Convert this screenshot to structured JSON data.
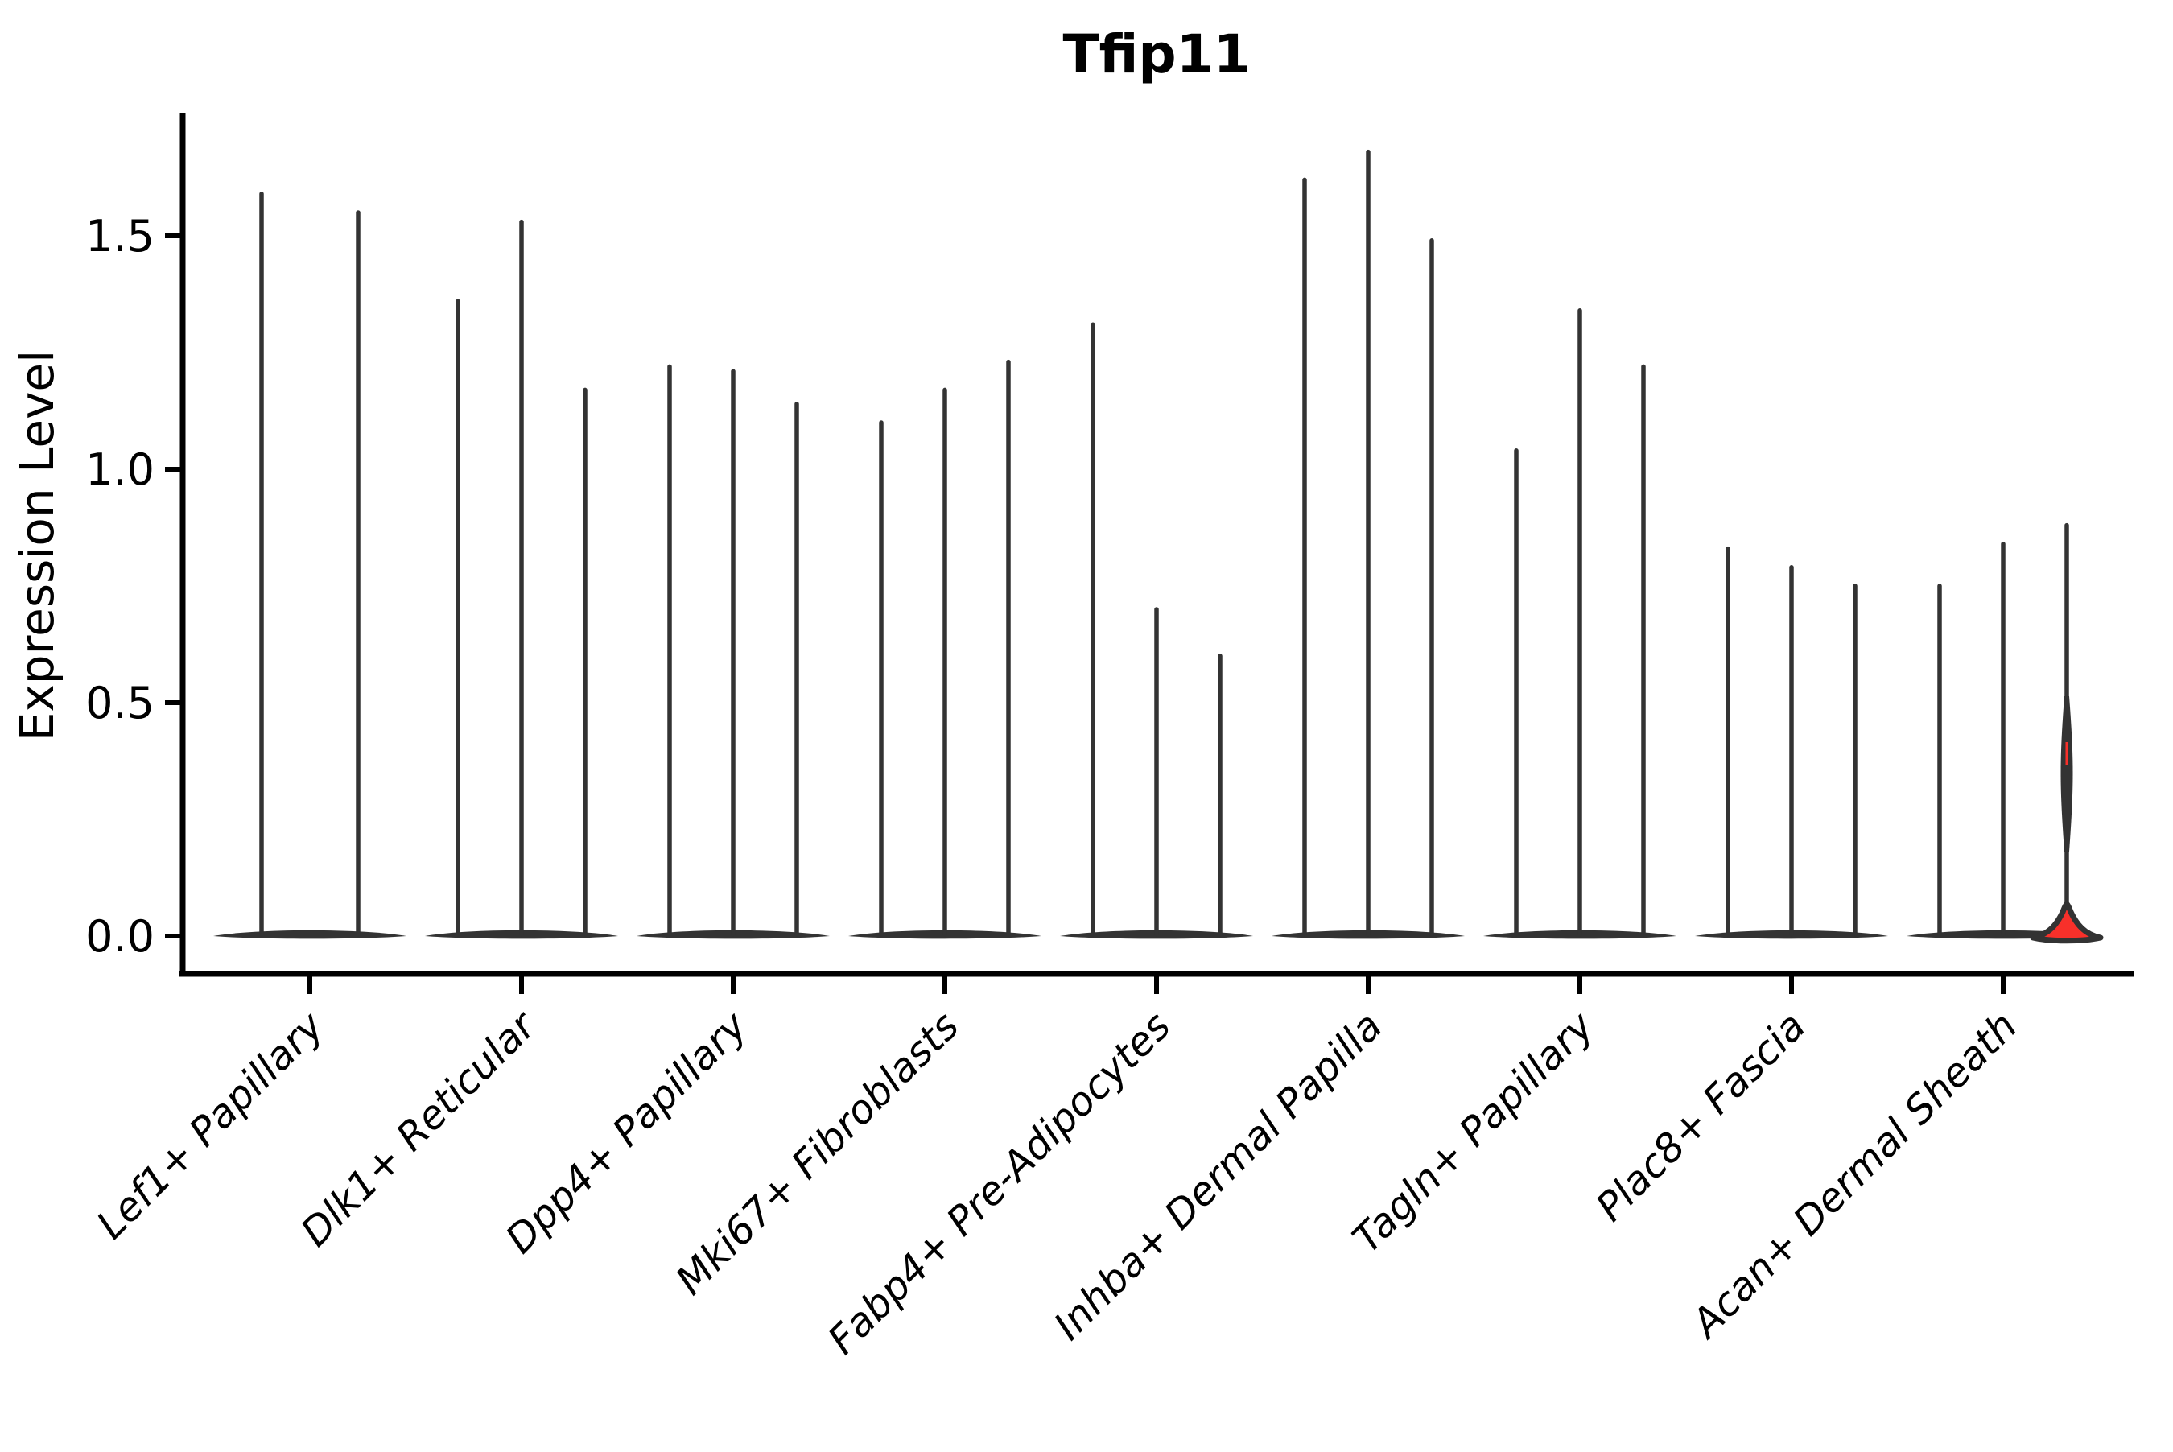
{
  "chart_data": {
    "type": "violin",
    "title": "Tfip11",
    "ylabel": "Expression Level",
    "xlabel": "",
    "ylim": [
      -0.08,
      1.76
    ],
    "yticks": [
      0.0,
      0.5,
      1.0,
      1.5
    ],
    "ytick_labels": [
      "0.0",
      "0.5",
      "1.0",
      "1.5"
    ],
    "grid": false,
    "legend": false,
    "categories": [
      "Lef1+ Papillary",
      "Dlk1+ Reticular",
      "Dpp4+ Papillary",
      "Mki67+ Fibroblasts",
      "Fabp4+ Pre-Adipocytes",
      "Inhba+ Dermal Papilla",
      "Tagln+ Papillary",
      "Plac8+ Fascia",
      "Acan+ Dermal Sheath"
    ],
    "groups": [
      {
        "category": "Lef1+ Papillary",
        "violin_max_expression": [
          1.59,
          1.55
        ],
        "highlight_index": null
      },
      {
        "category": "Dlk1+ Reticular",
        "violin_max_expression": [
          1.36,
          1.53,
          1.17
        ],
        "highlight_index": null
      },
      {
        "category": "Dpp4+ Papillary",
        "violin_max_expression": [
          1.22,
          1.21,
          1.14
        ],
        "highlight_index": null
      },
      {
        "category": "Mki67+ Fibroblasts",
        "violin_max_expression": [
          1.1,
          1.17,
          1.23
        ],
        "highlight_index": null
      },
      {
        "category": "Fabp4+ Pre-Adipocytes",
        "violin_max_expression": [
          1.31,
          0.7,
          0.6
        ],
        "highlight_index": null
      },
      {
        "category": "Inhba+ Dermal Papilla",
        "violin_max_expression": [
          1.62,
          1.68,
          1.49
        ],
        "highlight_index": null
      },
      {
        "category": "Tagln+ Papillary",
        "violin_max_expression": [
          1.04,
          1.34,
          1.22
        ],
        "highlight_index": null
      },
      {
        "category": "Plac8+ Fascia",
        "violin_max_expression": [
          0.83,
          0.79,
          0.75
        ],
        "highlight_index": null
      },
      {
        "category": "Acan+ Dermal Sheath",
        "violin_max_expression": [
          0.75,
          0.84,
          0.88
        ],
        "highlight_index": 2
      }
    ],
    "shape_note": "Each violin is a near-zero-width spike: density mass concentrated at 0 (flat dark base band) with a hairline stem up to the max expression value. The highlighted violin (last of Acan+ Dermal Sheath) shows a red fill: a red bell-shaped blob at 0 and a faint red sliver in a mid bulge near 0.4."
  },
  "colors": {
    "background": "#ffffff",
    "axis": "#000000",
    "text": "#000000",
    "violin_stroke": "#333333",
    "base_band": "#333333",
    "highlight_fill": "#f8302a"
  }
}
